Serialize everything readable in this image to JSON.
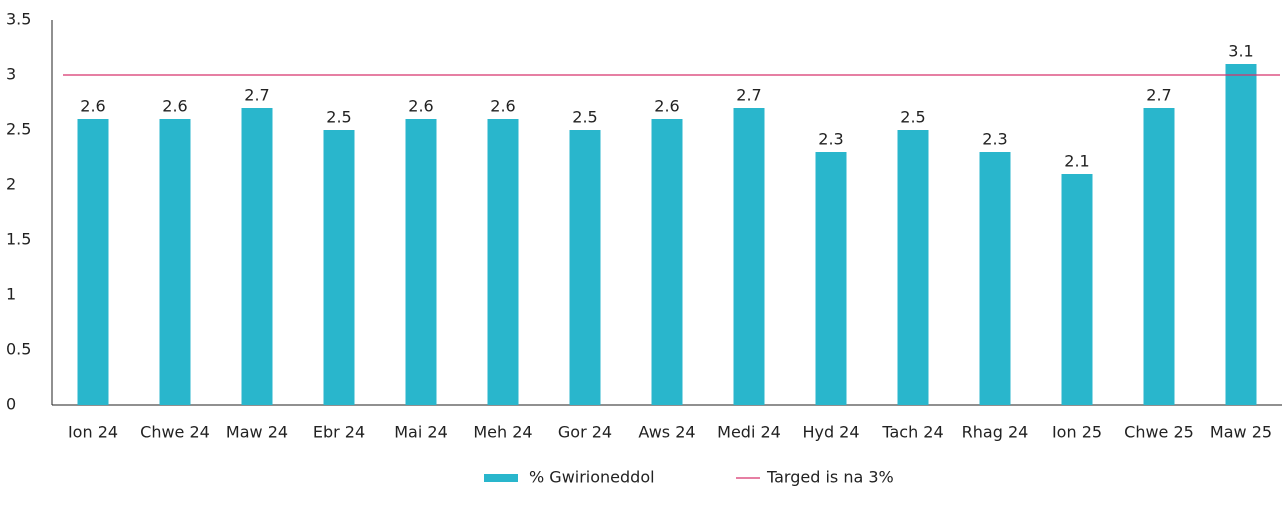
{
  "chart_data": {
    "type": "bar",
    "categories": [
      "Ion 24",
      "Chwe 24",
      "Maw 24",
      "Ebr 24",
      "Mai 24",
      "Meh 24",
      "Gor 24",
      "Aws 24",
      "Medi 24",
      "Hyd 24",
      "Tach 24",
      "Rhag 24",
      "Ion 25",
      "Chwe 25",
      "Maw 25"
    ],
    "series": [
      {
        "name": "% Gwirioneddol",
        "color": "#29b6cc",
        "values": [
          2.6,
          2.6,
          2.7,
          2.5,
          2.6,
          2.6,
          2.5,
          2.6,
          2.7,
          2.3,
          2.5,
          2.3,
          2.1,
          2.7,
          3.1
        ]
      }
    ],
    "target": {
      "name": "Targed is na 3%",
      "value": 3,
      "color": "#d6336c"
    },
    "ylim": [
      0,
      3.5
    ],
    "yticks": [
      0,
      0.5,
      1,
      1.5,
      2,
      2.5,
      3,
      3.5
    ],
    "grid": false,
    "legend": "bottom"
  }
}
